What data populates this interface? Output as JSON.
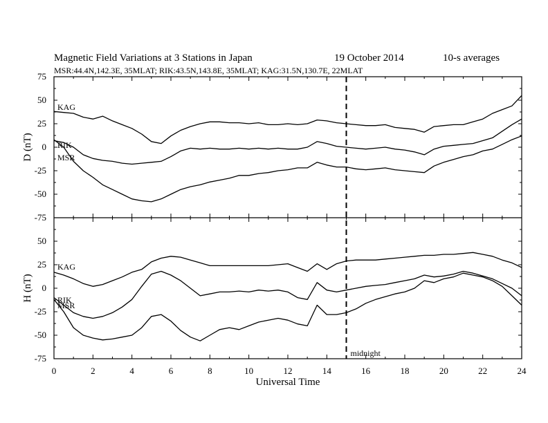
{
  "chart_data": {
    "type": "line",
    "title_left": "Magnetic Field Variations at 3 Stations in Japan",
    "title_date": "19 October 2014",
    "title_avg": "10-s averages",
    "subtitle": "MSR:44.4N,142.3E, 35MLAT;  RIK:43.5N,143.8E, 35MLAT;  KAG:31.5N,130.7E, 22MLAT",
    "xlabel": "Universal Time",
    "xlim": [
      0,
      24
    ],
    "x_ticks": [
      "0",
      "2",
      "4",
      "6",
      "8",
      "10",
      "12",
      "14",
      "16",
      "18",
      "20",
      "22",
      "24"
    ],
    "marker": {
      "x": 15,
      "label": "midnight"
    },
    "panels": [
      {
        "ylabel": "D (nT)",
        "ylim": [
          -75,
          75
        ],
        "y_ticks": [
          "75",
          "50",
          "25",
          "0",
          "-25",
          "-50",
          "-75"
        ],
        "series": [
          {
            "name": "KAG",
            "x": [
              0,
              0.5,
              1,
              1.5,
              2,
              2.5,
              3,
              3.5,
              4,
              4.5,
              5,
              5.5,
              6,
              6.5,
              7,
              7.5,
              8,
              8.5,
              9,
              9.5,
              10,
              10.5,
              11,
              11.5,
              12,
              12.5,
              13,
              13.5,
              14,
              14.5,
              15,
              15.5,
              16,
              16.5,
              17,
              17.5,
              18,
              18.5,
              19,
              19.5,
              20,
              20.5,
              21,
              21.5,
              22,
              22.5,
              23,
              23.5,
              24
            ],
            "y": [
              38,
              37,
              36,
              32,
              30,
              33,
              28,
              24,
              20,
              14,
              6,
              4,
              12,
              18,
              22,
              25,
              27,
              27,
              26,
              26,
              25,
              26,
              24,
              24,
              25,
              24,
              25,
              29,
              28,
              26,
              25,
              24,
              23,
              23,
              24,
              21,
              20,
              19,
              16,
              22,
              23,
              24,
              24,
              27,
              30,
              36,
              40,
              44,
              55
            ]
          },
          {
            "name": "RIK",
            "x": [
              0,
              0.5,
              1,
              1.5,
              2,
              2.5,
              3,
              3.5,
              4,
              4.5,
              5,
              5.5,
              6,
              6.5,
              7,
              7.5,
              8,
              8.5,
              9,
              9.5,
              10,
              10.5,
              11,
              11.5,
              12,
              12.5,
              13,
              13.5,
              14,
              14.5,
              15,
              15.5,
              16,
              16.5,
              17,
              17.5,
              18,
              18.5,
              19,
              19.5,
              20,
              20.5,
              21,
              21.5,
              22,
              22.5,
              23,
              23.5,
              24
            ],
            "y": [
              7,
              5,
              0,
              -8,
              -12,
              -14,
              -15,
              -17,
              -18,
              -17,
              -16,
              -15,
              -10,
              -4,
              -1,
              -2,
              -1,
              -2,
              -2,
              -1,
              -2,
              -1,
              -2,
              -1,
              -2,
              -2,
              0,
              6,
              4,
              1,
              0,
              -1,
              -2,
              -1,
              0,
              -2,
              -3,
              -5,
              -8,
              -2,
              1,
              2,
              3,
              4,
              7,
              10,
              17,
              24,
              30
            ]
          },
          {
            "name": "MSR",
            "x": [
              0,
              0.5,
              1,
              1.5,
              2,
              2.5,
              3,
              3.5,
              4,
              4.5,
              5,
              5.5,
              6,
              6.5,
              7,
              7.5,
              8,
              8.5,
              9,
              9.5,
              10,
              10.5,
              11,
              11.5,
              12,
              12.5,
              13,
              13.5,
              14,
              14.5,
              15,
              15.5,
              16,
              16.5,
              17,
              17.5,
              18,
              18.5,
              19,
              19.5,
              20,
              20.5,
              21,
              21.5,
              22,
              22.5,
              23,
              23.5,
              24
            ],
            "y": [
              8,
              0,
              -15,
              -25,
              -32,
              -40,
              -45,
              -50,
              -55,
              -57,
              -58,
              -55,
              -50,
              -45,
              -42,
              -40,
              -37,
              -35,
              -33,
              -30,
              -30,
              -28,
              -27,
              -25,
              -24,
              -22,
              -22,
              -16,
              -19,
              -21,
              -21,
              -23,
              -24,
              -23,
              -22,
              -24,
              -25,
              -26,
              -27,
              -20,
              -16,
              -13,
              -10,
              -8,
              -4,
              -2,
              3,
              8,
              12
            ]
          }
        ],
        "labels": [
          "KAG",
          "RIK",
          "MSR"
        ]
      },
      {
        "ylabel": "H (nT)",
        "ylim": [
          -75,
          75
        ],
        "y_ticks": [
          "75",
          "50",
          "25",
          "0",
          "-25",
          "-50",
          "-75"
        ],
        "series": [
          {
            "name": "KAG",
            "x": [
              0,
              0.5,
              1,
              1.5,
              2,
              2.5,
              3,
              3.5,
              4,
              4.5,
              5,
              5.5,
              6,
              6.5,
              7,
              7.5,
              8,
              8.5,
              9,
              9.5,
              10,
              10.5,
              11,
              11.5,
              12,
              12.5,
              13,
              13.5,
              14,
              14.5,
              15,
              15.5,
              16,
              16.5,
              17,
              17.5,
              18,
              18.5,
              19,
              19.5,
              20,
              20.5,
              21,
              21.5,
              22,
              22.5,
              23,
              23.5,
              24
            ],
            "y": [
              17,
              14,
              10,
              5,
              2,
              4,
              8,
              12,
              17,
              20,
              28,
              32,
              34,
              33,
              30,
              27,
              24,
              24,
              24,
              24,
              24,
              24,
              24,
              25,
              26,
              22,
              18,
              26,
              20,
              26,
              29,
              30,
              30,
              30,
              31,
              32,
              33,
              34,
              35,
              35,
              36,
              36,
              37,
              38,
              36,
              34,
              30,
              27,
              22
            ]
          },
          {
            "name": "RIK",
            "x": [
              0,
              0.5,
              1,
              1.5,
              2,
              2.5,
              3,
              3.5,
              4,
              4.5,
              5,
              5.5,
              6,
              6.5,
              7,
              7.5,
              8,
              8.5,
              9,
              9.5,
              10,
              10.5,
              11,
              11.5,
              12,
              12.5,
              13,
              13.5,
              14,
              14.5,
              15,
              15.5,
              16,
              16.5,
              17,
              17.5,
              18,
              18.5,
              19,
              19.5,
              20,
              20.5,
              21,
              21.5,
              22,
              22.5,
              23,
              23.5,
              24
            ],
            "y": [
              -10,
              -18,
              -26,
              -30,
              -32,
              -30,
              -26,
              -20,
              -12,
              2,
              15,
              18,
              14,
              8,
              0,
              -8,
              -6,
              -4,
              -4,
              -3,
              -4,
              -2,
              -3,
              -2,
              -4,
              -10,
              -12,
              6,
              -2,
              -4,
              -2,
              0,
              2,
              3,
              4,
              6,
              8,
              10,
              14,
              12,
              13,
              15,
              18,
              16,
              13,
              10,
              5,
              0,
              -8
            ]
          },
          {
            "name": "MSR",
            "x": [
              0,
              0.5,
              1,
              1.5,
              2,
              2.5,
              3,
              3.5,
              4,
              4.5,
              5,
              5.5,
              6,
              6.5,
              7,
              7.5,
              8,
              8.5,
              9,
              9.5,
              10,
              10.5,
              11,
              11.5,
              12,
              12.5,
              13,
              13.5,
              14,
              14.5,
              15,
              15.5,
              16,
              16.5,
              17,
              17.5,
              18,
              18.5,
              19,
              19.5,
              20,
              20.5,
              21,
              21.5,
              22,
              22.5,
              23,
              23.5,
              24
            ],
            "y": [
              -12,
              -25,
              -42,
              -50,
              -53,
              -55,
              -54,
              -52,
              -50,
              -42,
              -30,
              -28,
              -35,
              -45,
              -52,
              -56,
              -50,
              -44,
              -42,
              -44,
              -40,
              -36,
              -34,
              -32,
              -34,
              -38,
              -40,
              -18,
              -28,
              -28,
              -26,
              -22,
              -16,
              -12,
              -9,
              -6,
              -4,
              0,
              8,
              6,
              10,
              12,
              16,
              14,
              12,
              8,
              2,
              -8,
              -18
            ]
          }
        ],
        "labels": [
          "KAG",
          "RIK",
          "MSR"
        ]
      }
    ]
  }
}
